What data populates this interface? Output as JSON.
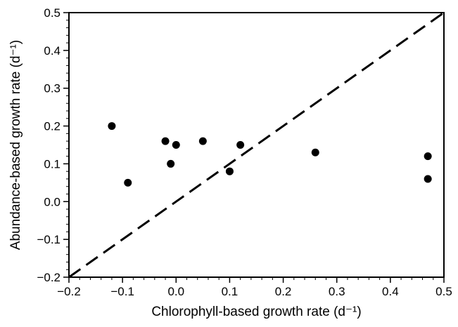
{
  "chart_data": {
    "type": "scatter",
    "title": "",
    "xlabel": "Chlorophyll-based growth rate (d⁻¹)",
    "ylabel": "Abundance-based growth rate (d⁻¹)",
    "xlim": [
      -0.2,
      0.5
    ],
    "ylim": [
      -0.2,
      0.5
    ],
    "x_ticks": [
      -0.2,
      -0.1,
      0.0,
      0.1,
      0.2,
      0.3,
      0.4,
      0.5
    ],
    "y_ticks": [
      -0.2,
      -0.1,
      0.0,
      0.1,
      0.2,
      0.3,
      0.4,
      0.5
    ],
    "x_tick_labels": [
      "−0.2",
      "−0.1",
      "0.0",
      "0.1",
      "0.2",
      "0.3",
      "0.4",
      "0.5"
    ],
    "y_tick_labels": [
      "−0.2",
      "−0.1",
      "0.0",
      "0.1",
      "0.2",
      "0.3",
      "0.4",
      "0.5"
    ],
    "minor_tick_step": 0.02,
    "grid": false,
    "reference_line": {
      "style": "dashed",
      "from": [
        -0.2,
        -0.2
      ],
      "to": [
        0.5,
        0.5
      ],
      "color": "#000000"
    },
    "marker_color": "#000000",
    "points": [
      {
        "x": -0.12,
        "y": 0.2
      },
      {
        "x": -0.09,
        "y": 0.05
      },
      {
        "x": -0.02,
        "y": 0.16
      },
      {
        "x": -0.01,
        "y": 0.1
      },
      {
        "x": 0.0,
        "y": 0.15
      },
      {
        "x": 0.05,
        "y": 0.16
      },
      {
        "x": 0.1,
        "y": 0.08
      },
      {
        "x": 0.12,
        "y": 0.15
      },
      {
        "x": 0.26,
        "y": 0.13
      },
      {
        "x": 0.47,
        "y": 0.12
      },
      {
        "x": 0.47,
        "y": 0.06
      }
    ]
  }
}
